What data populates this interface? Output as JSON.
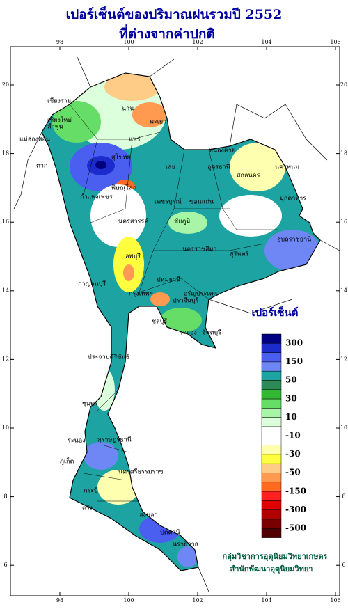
{
  "header": {
    "title": [
      "เปอร์เซ็นต์ของปริมาณฝนรวมปี 2552",
      "ที่ต่างจากค่าปกติ"
    ]
  },
  "map": {
    "xticks": [
      98,
      100,
      102,
      104,
      106
    ],
    "yticks": [
      6,
      8,
      10,
      12,
      14,
      16,
      18,
      20
    ]
  },
  "legend": {
    "title": "เปอร์เซ็นต์",
    "colors": [
      "#000080",
      "#1c2ccc",
      "#4a5ef0",
      "#6f86f5",
      "#1ea3a3",
      "#2e8b57",
      "#33b833",
      "#66dd66",
      "#a8f5a8",
      "#dcffdc",
      "#ffffff",
      "#ffffff",
      "#ffffb0",
      "#ffff40",
      "#ffcc88",
      "#ff9a50",
      "#ff6a20",
      "#ff2020",
      "#e00000",
      "#b00000",
      "#7a0000",
      "#500000"
    ],
    "labels": [
      300,
      150,
      50,
      30,
      10,
      -10,
      -30,
      -50,
      -150,
      -300,
      -500
    ]
  },
  "places": [
    "เชียงราย",
    "แม่ฮ่องสอน",
    "เชียงใหม่",
    "น่าน",
    "ลำพูน",
    "พะเยา",
    "แพร่",
    "ตาก",
    "สุโขทัย",
    "พิษณุโลก",
    "หนองคาย",
    "อุดรธานี",
    "นครพนม",
    "เลย",
    "สกลนคร",
    "มุกดาหาร",
    "กำแพงเพชร",
    "ขอนแก่น",
    "เพชรบูรณ์",
    "นครสวรรค์",
    "ชัยภูมิ",
    "อุบลราชธานี",
    "ลพบุรี",
    "นครราชสีมา",
    "สุรินทร์",
    "กาญจนบุรี",
    "กรุงเทพฯ",
    "ปทุมธานี",
    "ปราจีนบุรี",
    "อรัญประเทศ",
    "ชลบุรี",
    "ระยอง",
    "จันทบุรี",
    "ประจวบคีรีขันธ์",
    "ชุมพร",
    "ระนอง",
    "สุราษฎร์ธานี",
    "นครศรีธรรมราช",
    "ภูเก็ต",
    "กระบี่",
    "ตรัง",
    "สงขลา",
    "ปัตตานี",
    "นราธิวาส"
  ],
  "credits": [
    "กลุ่มวิชาการอุตุนิยมวิทยาเกษตร",
    "สำนักพัฒนาอุตุนิยมวิทยา"
  ]
}
